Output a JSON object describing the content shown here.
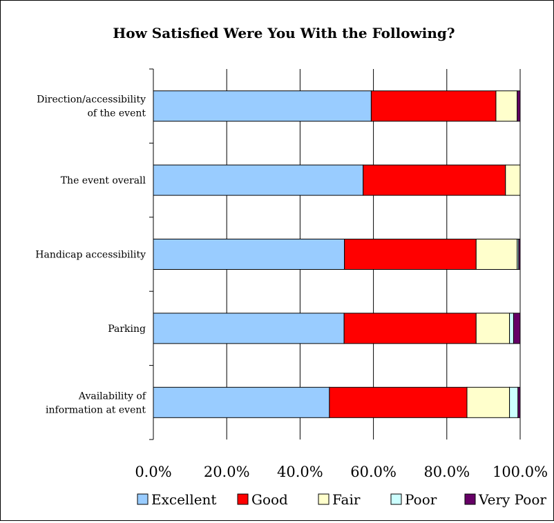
{
  "chart_data": {
    "type": "bar",
    "orientation": "horizontal",
    "stacked": true,
    "title": "How Satisfied Were You With the Following?",
    "categories": [
      [
        "Direction/accessibility",
        "of the event"
      ],
      [
        "The event overall"
      ],
      [
        "Handicap accessibility"
      ],
      [
        "Parking"
      ],
      [
        "Availability of",
        "information at event"
      ]
    ],
    "series": [
      {
        "name": "Excellent",
        "color": "#99ccff",
        "values": [
          0.594,
          0.572,
          0.521,
          0.52,
          0.48
        ]
      },
      {
        "name": "Good",
        "color": "#ff0000",
        "values": [
          0.34,
          0.388,
          0.359,
          0.36,
          0.375
        ]
      },
      {
        "name": "Fair",
        "color": "#ffffcc",
        "values": [
          0.058,
          0.04,
          0.112,
          0.091,
          0.116
        ]
      },
      {
        "name": "Poor",
        "color": "#ccffff",
        "values": [
          0.0,
          0.0,
          0.004,
          0.011,
          0.023
        ]
      },
      {
        "name": "Very Poor",
        "color": "#660066",
        "values": [
          0.008,
          0.0,
          0.004,
          0.018,
          0.006
        ]
      }
    ],
    "xlim": [
      0,
      1
    ],
    "x_ticks": [
      0,
      0.2,
      0.4,
      0.6,
      0.8,
      1.0
    ],
    "x_tick_labels": [
      "0.0%",
      "20.0%",
      "40.0%",
      "60.0%",
      "80.0%",
      "100.0%"
    ],
    "grid": "vertical",
    "legend": "bottom"
  }
}
